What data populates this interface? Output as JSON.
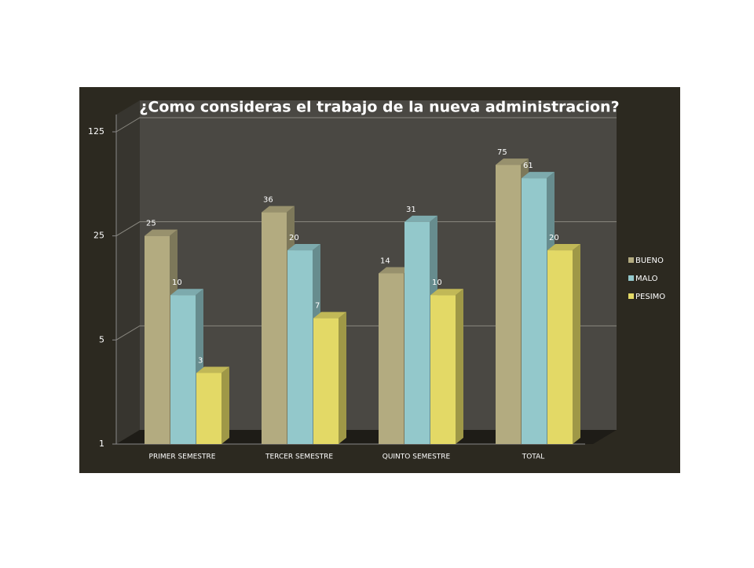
{
  "chart_data": {
    "type": "bar3d",
    "title": "¿Como consideras el trabajo de la nueva administracion?",
    "categories": [
      "PRIMER SEMESTRE",
      "TERCER SEMESTRE",
      "QUINTO SEMESTRE",
      "TOTAL"
    ],
    "series": [
      {
        "name": "BUENO",
        "color": "#b3ab80",
        "values": [
          25,
          36,
          14,
          75
        ]
      },
      {
        "name": "MALO",
        "color": "#93c8cb",
        "values": [
          10,
          20,
          31,
          61
        ]
      },
      {
        "name": "PESIMO",
        "color": "#e3d966",
        "values": [
          3,
          7,
          10,
          20
        ]
      }
    ],
    "ylim": [
      1,
      125
    ],
    "yticks": [
      1,
      5,
      25,
      125
    ],
    "log_scale": true,
    "grid": true,
    "legend": "right"
  }
}
